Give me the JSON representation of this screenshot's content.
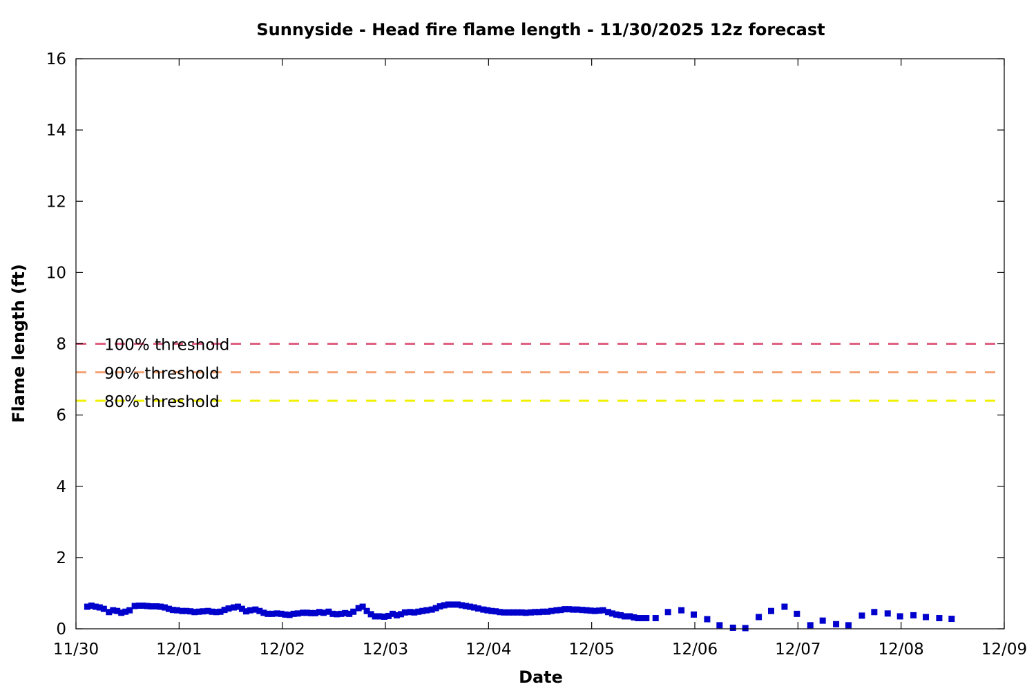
{
  "chart_data": {
    "type": "scatter",
    "title": "Sunnyside - Head fire flame length - 11/30/2025 12z forecast",
    "xlabel": "Date",
    "ylabel": "Flame length (ft)",
    "x_tick_labels": [
      "11/30",
      "12/01",
      "12/02",
      "12/03",
      "12/04",
      "12/05",
      "12/06",
      "12/07",
      "12/08",
      "12/09"
    ],
    "xlim_days": [
      0,
      9
    ],
    "ylim": [
      0,
      16
    ],
    "y_ticks": [
      0,
      2,
      4,
      6,
      8,
      10,
      12,
      14,
      16
    ],
    "grid": false,
    "legend_position": "left",
    "marker_color": "#0000cc",
    "thresholds": [
      {
        "name": "100% threshold",
        "value": 8.0,
        "color": "#e06080"
      },
      {
        "name": "90% threshold",
        "value": 7.2,
        "color": "#f4a070"
      },
      {
        "name": "80% threshold",
        "value": 6.4,
        "color": "#f0f000"
      }
    ],
    "series": [
      {
        "points": [
          [
            0.11,
            0.62
          ],
          [
            0.15,
            0.65
          ],
          [
            0.19,
            0.62
          ],
          [
            0.23,
            0.6
          ],
          [
            0.27,
            0.56
          ],
          [
            0.32,
            0.47
          ],
          [
            0.36,
            0.52
          ],
          [
            0.4,
            0.5
          ],
          [
            0.44,
            0.45
          ],
          [
            0.48,
            0.48
          ],
          [
            0.52,
            0.52
          ],
          [
            0.57,
            0.64
          ],
          [
            0.61,
            0.65
          ],
          [
            0.65,
            0.65
          ],
          [
            0.69,
            0.64
          ],
          [
            0.73,
            0.63
          ],
          [
            0.78,
            0.63
          ],
          [
            0.82,
            0.62
          ],
          [
            0.86,
            0.6
          ],
          [
            0.9,
            0.56
          ],
          [
            0.94,
            0.53
          ],
          [
            0.98,
            0.52
          ],
          [
            1.03,
            0.5
          ],
          [
            1.07,
            0.5
          ],
          [
            1.11,
            0.49
          ],
          [
            1.15,
            0.47
          ],
          [
            1.19,
            0.48
          ],
          [
            1.23,
            0.49
          ],
          [
            1.28,
            0.5
          ],
          [
            1.32,
            0.48
          ],
          [
            1.36,
            0.47
          ],
          [
            1.4,
            0.48
          ],
          [
            1.44,
            0.53
          ],
          [
            1.48,
            0.57
          ],
          [
            1.53,
            0.6
          ],
          [
            1.57,
            0.62
          ],
          [
            1.61,
            0.56
          ],
          [
            1.65,
            0.49
          ],
          [
            1.69,
            0.52
          ],
          [
            1.74,
            0.54
          ],
          [
            1.78,
            0.5
          ],
          [
            1.82,
            0.45
          ],
          [
            1.86,
            0.42
          ],
          [
            1.9,
            0.42
          ],
          [
            1.95,
            0.43
          ],
          [
            1.99,
            0.42
          ],
          [
            2.03,
            0.4
          ],
          [
            2.07,
            0.39
          ],
          [
            2.11,
            0.42
          ],
          [
            2.15,
            0.43
          ],
          [
            2.2,
            0.45
          ],
          [
            2.24,
            0.45
          ],
          [
            2.28,
            0.44
          ],
          [
            2.32,
            0.44
          ],
          [
            2.36,
            0.47
          ],
          [
            2.4,
            0.45
          ],
          [
            2.45,
            0.48
          ],
          [
            2.49,
            0.42
          ],
          [
            2.53,
            0.41
          ],
          [
            2.57,
            0.42
          ],
          [
            2.61,
            0.44
          ],
          [
            2.65,
            0.42
          ],
          [
            2.69,
            0.48
          ],
          [
            2.74,
            0.58
          ],
          [
            2.78,
            0.62
          ],
          [
            2.82,
            0.5
          ],
          [
            2.86,
            0.41
          ],
          [
            2.9,
            0.35
          ],
          [
            2.94,
            0.35
          ],
          [
            2.99,
            0.34
          ],
          [
            3.03,
            0.36
          ],
          [
            3.07,
            0.42
          ],
          [
            3.11,
            0.38
          ],
          [
            3.15,
            0.41
          ],
          [
            3.19,
            0.46
          ],
          [
            3.24,
            0.47
          ],
          [
            3.28,
            0.46
          ],
          [
            3.32,
            0.48
          ],
          [
            3.36,
            0.5
          ],
          [
            3.4,
            0.52
          ],
          [
            3.45,
            0.54
          ],
          [
            3.49,
            0.58
          ],
          [
            3.53,
            0.63
          ],
          [
            3.57,
            0.66
          ],
          [
            3.61,
            0.68
          ],
          [
            3.65,
            0.68
          ],
          [
            3.7,
            0.68
          ],
          [
            3.74,
            0.66
          ],
          [
            3.78,
            0.64
          ],
          [
            3.82,
            0.62
          ],
          [
            3.86,
            0.6
          ],
          [
            3.9,
            0.57
          ],
          [
            3.95,
            0.54
          ],
          [
            3.99,
            0.52
          ],
          [
            4.03,
            0.5
          ],
          [
            4.07,
            0.49
          ],
          [
            4.11,
            0.47
          ],
          [
            4.15,
            0.46
          ],
          [
            4.2,
            0.46
          ],
          [
            4.24,
            0.46
          ],
          [
            4.28,
            0.46
          ],
          [
            4.32,
            0.46
          ],
          [
            4.36,
            0.45
          ],
          [
            4.41,
            0.46
          ],
          [
            4.45,
            0.47
          ],
          [
            4.49,
            0.47
          ],
          [
            4.53,
            0.48
          ],
          [
            4.57,
            0.48
          ],
          [
            4.61,
            0.5
          ],
          [
            4.66,
            0.52
          ],
          [
            4.7,
            0.53
          ],
          [
            4.74,
            0.55
          ],
          [
            4.78,
            0.55
          ],
          [
            4.82,
            0.54
          ],
          [
            4.86,
            0.54
          ],
          [
            4.91,
            0.53
          ],
          [
            4.95,
            0.52
          ],
          [
            4.99,
            0.51
          ],
          [
            5.03,
            0.5
          ],
          [
            5.07,
            0.51
          ],
          [
            5.11,
            0.52
          ],
          [
            5.16,
            0.47
          ],
          [
            5.2,
            0.43
          ],
          [
            5.24,
            0.4
          ],
          [
            5.28,
            0.38
          ],
          [
            5.32,
            0.35
          ],
          [
            5.37,
            0.35
          ],
          [
            5.41,
            0.32
          ],
          [
            5.45,
            0.3
          ],
          [
            5.49,
            0.3
          ],
          [
            5.53,
            0.3
          ],
          [
            5.62,
            0.3
          ],
          [
            5.74,
            0.47
          ],
          [
            5.87,
            0.52
          ],
          [
            5.99,
            0.4
          ],
          [
            6.12,
            0.27
          ],
          [
            6.24,
            0.1
          ],
          [
            6.37,
            0.03
          ],
          [
            6.49,
            0.02
          ],
          [
            6.62,
            0.33
          ],
          [
            6.74,
            0.5
          ],
          [
            6.87,
            0.62
          ],
          [
            6.99,
            0.42
          ],
          [
            7.12,
            0.1
          ],
          [
            7.24,
            0.23
          ],
          [
            7.37,
            0.13
          ],
          [
            7.49,
            0.1
          ],
          [
            7.62,
            0.37
          ],
          [
            7.74,
            0.47
          ],
          [
            7.87,
            0.43
          ],
          [
            7.99,
            0.35
          ],
          [
            8.12,
            0.38
          ],
          [
            8.24,
            0.33
          ],
          [
            8.37,
            0.3
          ],
          [
            8.49,
            0.28
          ]
        ]
      }
    ]
  }
}
